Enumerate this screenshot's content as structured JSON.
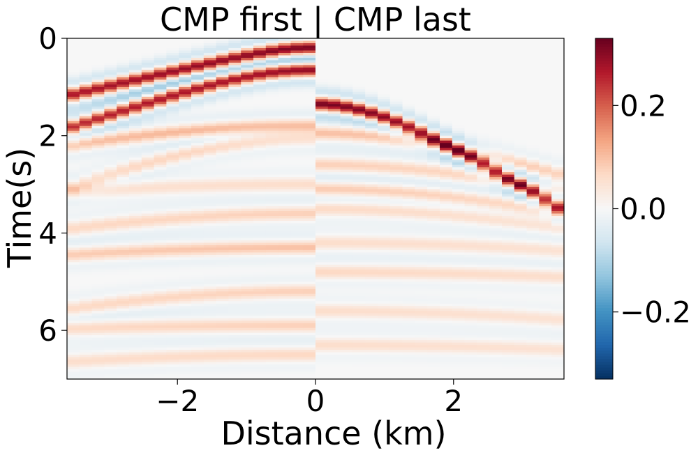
{
  "chart_data": {
    "type": "heatmap",
    "title": "CMP first | CMP last",
    "xlabel": "Distance (km)",
    "ylabel": "Time(s)",
    "xlim": [
      -3.6,
      3.6
    ],
    "ylim": [
      7.0,
      0.0
    ],
    "x_ticks": [
      {
        "value": -2,
        "label": "−2"
      },
      {
        "value": 0,
        "label": "0"
      },
      {
        "value": 2,
        "label": "2"
      }
    ],
    "y_ticks": [
      {
        "value": 0,
        "label": "0"
      },
      {
        "value": 2,
        "label": "2"
      },
      {
        "value": 4,
        "label": "4"
      },
      {
        "value": 6,
        "label": "6"
      }
    ],
    "colormap": "RdBu_r",
    "colorbar": {
      "vmin": -0.33,
      "vmax": 0.33,
      "ticks": [
        {
          "value": 0.2,
          "label": "0.2"
        },
        {
          "value": 0.0,
          "label": "0.0"
        },
        {
          "value": -0.2,
          "label": "−0.2"
        }
      ]
    },
    "panels": [
      {
        "name": "CMP first",
        "x_range": [
          -3.6,
          0.0
        ]
      },
      {
        "name": "CMP last",
        "x_range": [
          0.0,
          3.6
        ]
      }
    ],
    "events": [
      {
        "panel": "CMP first",
        "t0": 0.2,
        "v": 6.0,
        "amp": 0.32
      },
      {
        "panel": "CMP first",
        "t0": 0.65,
        "v": 4.0,
        "amp": 0.3
      },
      {
        "panel": "CMP first",
        "t0": 1.8,
        "v": 5.5,
        "amp": 0.12
      },
      {
        "panel": "CMP first",
        "t0": 2.05,
        "v": 3.0,
        "amp": 0.08
      },
      {
        "panel": "CMP first",
        "t0": 3.0,
        "v": 7.0,
        "amp": 0.06
      },
      {
        "panel": "CMP first",
        "t0": 3.6,
        "v": 4.5,
        "amp": 0.08
      },
      {
        "panel": "CMP first",
        "t0": 4.3,
        "v": 6.0,
        "amp": 0.1
      },
      {
        "panel": "CMP first",
        "t0": 5.2,
        "v": 3.5,
        "amp": 0.08
      },
      {
        "panel": "CMP first",
        "t0": 5.9,
        "v": 8.0,
        "amp": 0.08
      },
      {
        "panel": "CMP first",
        "t0": 6.5,
        "v": 5.0,
        "amp": 0.07
      },
      {
        "panel": "CMP last",
        "t0": 1.35,
        "v": 2.2,
        "amp": 0.32
      },
      {
        "panel": "CMP last",
        "t0": 1.95,
        "v": 3.5,
        "amp": 0.1
      },
      {
        "panel": "CMP last",
        "t0": 2.6,
        "v": 4.0,
        "amp": 0.08
      },
      {
        "panel": "CMP last",
        "t0": 3.1,
        "v": 3.8,
        "amp": 0.09
      },
      {
        "panel": "CMP last",
        "t0": 3.5,
        "v": 4.2,
        "amp": 0.07
      },
      {
        "panel": "CMP last",
        "t0": 4.2,
        "v": 6.0,
        "amp": 0.06
      },
      {
        "panel": "CMP last",
        "t0": 4.8,
        "v": 7.0,
        "amp": 0.07
      },
      {
        "panel": "CMP last",
        "t0": 5.6,
        "v": 5.0,
        "amp": 0.06
      },
      {
        "panel": "CMP last",
        "t0": 6.3,
        "v": 6.5,
        "amp": 0.06
      }
    ],
    "grid": false
  }
}
